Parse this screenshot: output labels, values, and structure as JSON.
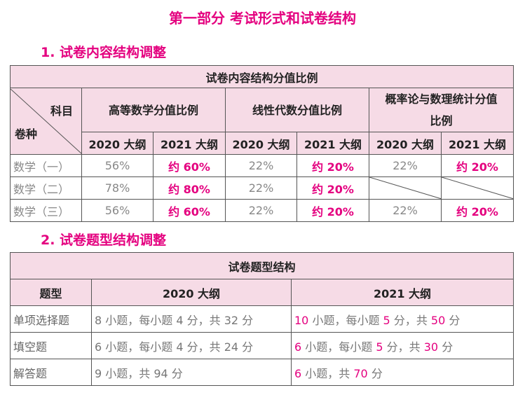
{
  "main_title": "第一部分 考试形式和试卷结构",
  "section1": {
    "title": "1. 试卷内容结构调整",
    "table_caption": "试卷内容结构分值比例",
    "corner_top": "科目",
    "corner_bottom": "卷种",
    "subjects": [
      "高等数学分值比例",
      "线性代数分值比例",
      "概率论与数理统计分值比例"
    ],
    "years": [
      "2020 大纲",
      "2021 大纲"
    ],
    "rows": [
      {
        "label": "数学（一）",
        "values": [
          "56%",
          "约 60%",
          "22%",
          "约 20%",
          "22%",
          "约 20%"
        ]
      },
      {
        "label": "数学（二）",
        "values": [
          "78%",
          "约 80%",
          "22%",
          "约 20%",
          "",
          ""
        ]
      },
      {
        "label": "数学（三）",
        "values": [
          "56%",
          "约 60%",
          "22%",
          "约 20%",
          "22%",
          "约 20%"
        ]
      }
    ]
  },
  "section2": {
    "title": "2. 试卷题型结构调整",
    "table_caption": "试卷题型结构",
    "headers": [
      "题型",
      "2020 大纲",
      "2021 大纲"
    ],
    "rows": [
      {
        "label": "单项选择题",
        "y2020": "8 小题，每小题 4 分，共 32 分",
        "y2021": {
          "n": "10",
          "mid": " 小题，每小题 ",
          "score": "5",
          "mid2": " 分，共 ",
          "total": "50",
          "end": " 分"
        }
      },
      {
        "label": "填空题",
        "y2020": "6 小题，每小题 4 分，共 24 分",
        "y2021": {
          "n": "6",
          "mid": " 小题，每小题 ",
          "score": "5",
          "mid2": " 分，共 ",
          "total": "30",
          "end": " 分"
        }
      },
      {
        "label": "解答题",
        "y2020": "9 小题，共 94 分",
        "y2021": {
          "n": "6",
          "mid": " 小题，共 ",
          "total": "70",
          "end": " 分"
        }
      }
    ]
  },
  "colors": {
    "accent": "#e4007f",
    "header_bg": "#f6dbe6"
  }
}
